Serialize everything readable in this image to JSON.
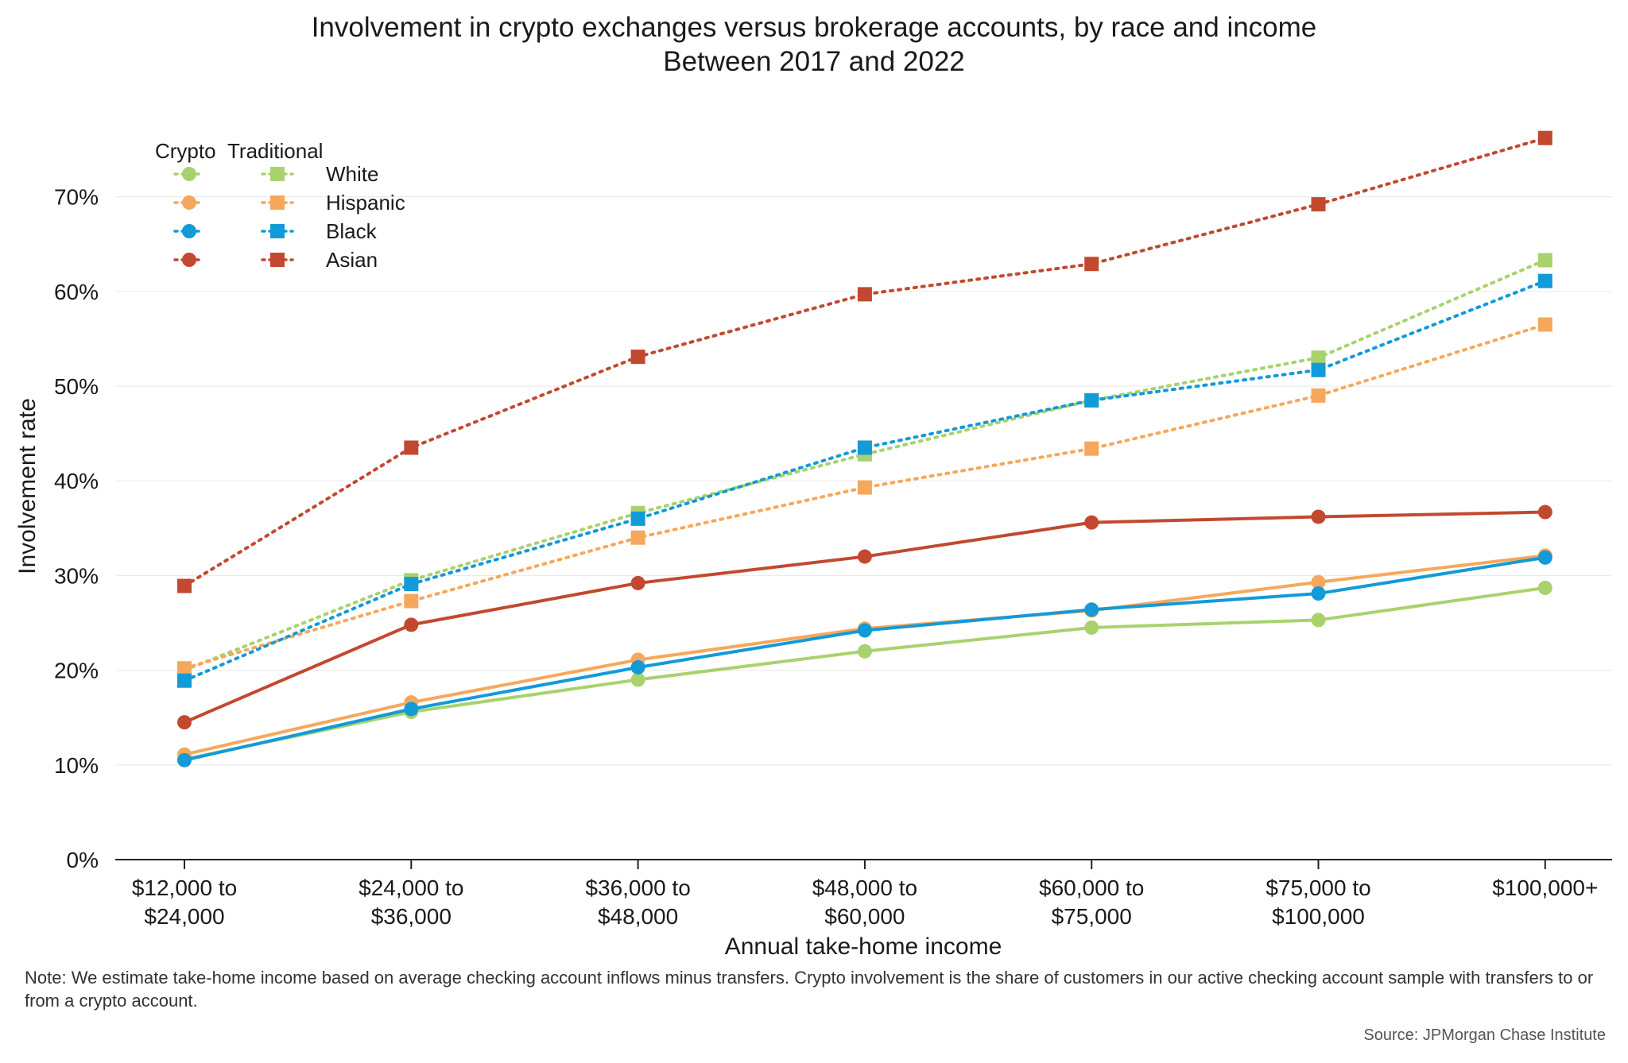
{
  "title": "Involvement in crypto exchanges versus brokerage accounts, by race and income",
  "subtitle": "Between 2017 and 2022",
  "note": "Note: We estimate take-home income based on average checking account inflows minus transfers. Crypto involvement is the share of customers in our active checking account sample with transfers to or from a crypto account.",
  "source": "Source: JPMorgan Chase Institute",
  "legend": {
    "crypto_header": "Crypto",
    "traditional_header": "Traditional",
    "entries": [
      {
        "label": "White",
        "color": "#a8d26e"
      },
      {
        "label": "Hispanic",
        "color": "#f5a85c"
      },
      {
        "label": "Black",
        "color": "#139ad8"
      },
      {
        "label": "Asian",
        "color": "#c2492f"
      }
    ]
  },
  "chart_data": {
    "type": "line",
    "xlabel": "Annual take-home income",
    "ylabel": "Involvement rate",
    "categories": [
      [
        "$12,000 to",
        "$24,000"
      ],
      [
        "$24,000 to",
        "$36,000"
      ],
      [
        "$36,000 to",
        "$48,000"
      ],
      [
        "$48,000 to",
        "$60,000"
      ],
      [
        "$60,000 to",
        "$75,000"
      ],
      [
        "$75,000 to",
        "$100,000"
      ],
      [
        "$100,000+"
      ]
    ],
    "ylim": [
      0,
      75
    ],
    "yticks": [
      0,
      10,
      20,
      30,
      40,
      50,
      60,
      70
    ],
    "ytick_labels": [
      "0%",
      "10%",
      "20%",
      "30%",
      "40%",
      "50%",
      "60%",
      "70%"
    ],
    "grid": true,
    "legend_position": "top-left",
    "series": [
      {
        "name": "White",
        "kind": "Crypto",
        "marker": "circle",
        "style": "solid",
        "color": "#a8d26e",
        "values": [
          10.6,
          15.6,
          19.0,
          22.0,
          24.5,
          25.3,
          28.7
        ]
      },
      {
        "name": "Hispanic",
        "kind": "Crypto",
        "marker": "circle",
        "style": "solid",
        "color": "#f5a85c",
        "values": [
          11.1,
          16.6,
          21.1,
          24.4,
          26.3,
          29.3,
          32.1
        ]
      },
      {
        "name": "Black",
        "kind": "Crypto",
        "marker": "circle",
        "style": "solid",
        "color": "#139ad8",
        "values": [
          10.5,
          15.9,
          20.3,
          24.2,
          26.4,
          28.1,
          31.9
        ]
      },
      {
        "name": "Asian",
        "kind": "Crypto",
        "marker": "circle",
        "style": "solid",
        "color": "#c2492f",
        "values": [
          14.5,
          24.8,
          29.2,
          32.0,
          35.6,
          36.2,
          36.7
        ]
      },
      {
        "name": "White",
        "kind": "Traditional",
        "marker": "square",
        "style": "dotted",
        "color": "#a8d26e",
        "values": [
          20.0,
          29.5,
          36.6,
          42.8,
          48.5,
          53.0,
          63.3
        ]
      },
      {
        "name": "Hispanic",
        "kind": "Traditional",
        "marker": "square",
        "style": "dotted",
        "color": "#f5a85c",
        "values": [
          20.2,
          27.3,
          34.0,
          39.3,
          43.4,
          49.0,
          56.5
        ]
      },
      {
        "name": "Black",
        "kind": "Traditional",
        "marker": "square",
        "style": "dotted",
        "color": "#139ad8",
        "values": [
          18.9,
          29.1,
          36.0,
          43.5,
          48.5,
          51.7,
          61.1
        ]
      },
      {
        "name": "Asian",
        "kind": "Traditional",
        "marker": "square",
        "style": "dotted",
        "color": "#c2492f",
        "values": [
          28.9,
          43.5,
          53.1,
          59.7,
          62.9,
          69.2,
          76.2
        ]
      }
    ]
  }
}
